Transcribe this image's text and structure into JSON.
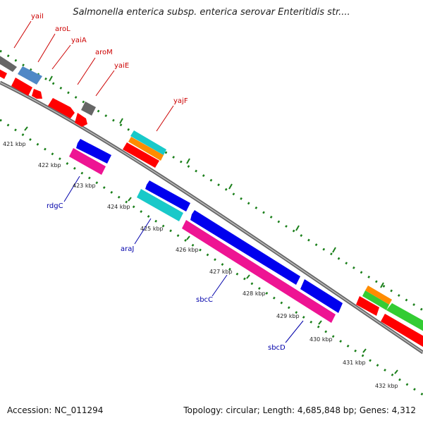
{
  "title": "Salmonella enterica subsp. enterica serovar Enteritidis str....",
  "footer": {
    "accession_label": "Accession: NC_011294",
    "topology_label": "Topology: circular; Length: 4,685,848 bp; Genes: 4,312"
  },
  "colors": {
    "backbone": "#888888",
    "tick": "#1a7f1a",
    "forward_label": "#cc0000",
    "reverse_label": "#0000aa",
    "red": "#ff0000",
    "gray": "#666666",
    "steelblue": "#4f88c6",
    "cyan": "#19c9c9",
    "orange": "#ff8c00",
    "blue": "#0000ee",
    "pink": "#ee1493",
    "green": "#33cc33"
  },
  "kbp_labels": [
    "421 kbp",
    "422 kbp",
    "423 kbp",
    "424 kbp",
    "425 kbp",
    "426 kbp",
    "427 kbp",
    "428 kbp",
    "429 kbp",
    "430 kbp",
    "431 kbp",
    "432 kbp"
  ],
  "gene_labels_forward": [
    "yaiI",
    "aroL",
    "yaiA",
    "aroM",
    "yaiE",
    "yajF"
  ],
  "gene_labels_reverse": [
    "rdgC",
    "araJ",
    "sbcC",
    "sbcD"
  ]
}
